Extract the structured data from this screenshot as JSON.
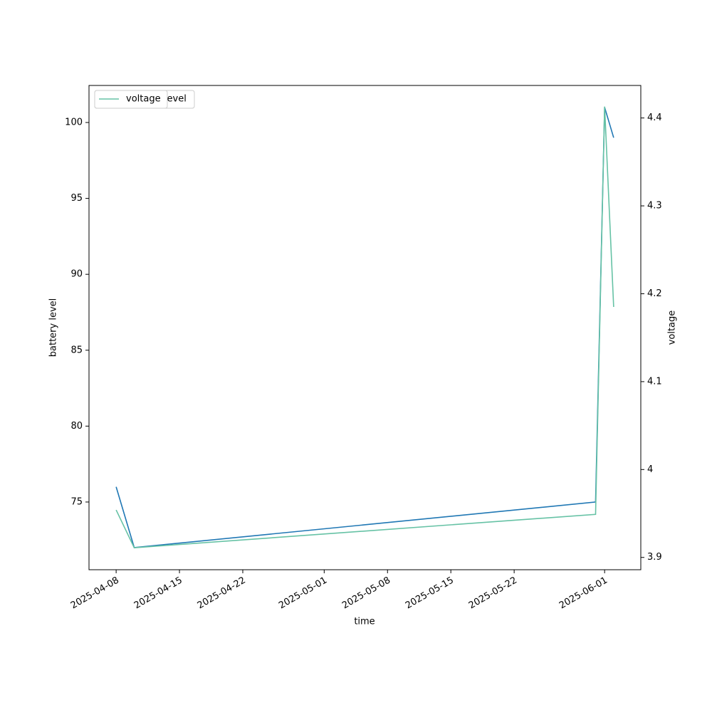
{
  "chart_data": {
    "type": "line",
    "x_label": "time",
    "y_label": "battery level",
    "y2_label": "voltage",
    "x": [
      "2025-04-08",
      "2025-04-10",
      "2025-05-31",
      "2025-06-01",
      "2025-06-02"
    ],
    "xlim": [
      "2025-04-05",
      "2025-06-05"
    ],
    "xticks": [
      "2025-04-08",
      "2025-04-15",
      "2025-04-22",
      "2025-05-01",
      "2025-05-08",
      "2025-05-15",
      "2025-05-22",
      "2025-06-01"
    ],
    "ylim": [
      70.54,
      102.44
    ],
    "yticks": [
      75,
      80,
      85,
      90,
      95,
      100
    ],
    "y2lim": [
      3.886,
      4.437
    ],
    "y2ticks": [
      3.9,
      4.0,
      4.1,
      4.2,
      4.3,
      4.4
    ],
    "series": [
      {
        "name": "battery_level",
        "color": "#1f77b4",
        "values": [
          76,
          72,
          75,
          101,
          99
        ]
      },
      {
        "name": "voltage",
        "color": "#66c2a5",
        "axis": "y2",
        "values": [
          3.954,
          3.911,
          3.949,
          4.413,
          4.185
        ]
      }
    ],
    "legend": "upper left"
  }
}
